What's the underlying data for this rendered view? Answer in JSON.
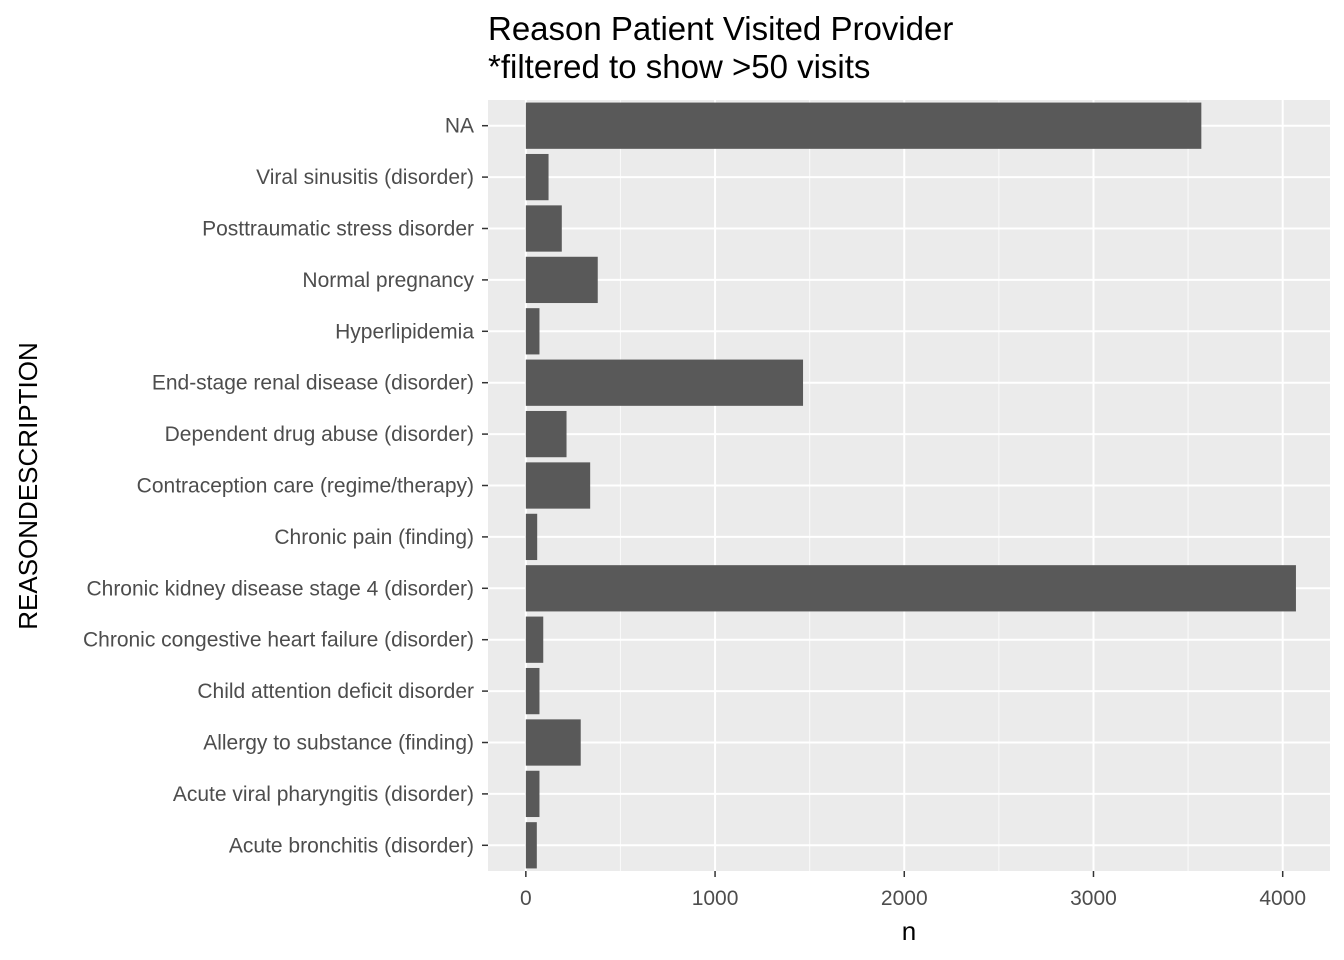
{
  "chart_data": {
    "type": "bar",
    "orientation": "horizontal",
    "title": "Reason Patient Visited Provider",
    "subtitle": "*filtered to show >50 visits",
    "xlabel": "n",
    "ylabel": "REASONDESCRIPTION",
    "xlim": [
      -200,
      4250
    ],
    "xticks": [
      0,
      1000,
      2000,
      3000,
      4000
    ],
    "grid": true,
    "bar_color": "#595959",
    "panel_color": "#ebebeb",
    "categories": [
      "NA",
      "Viral sinusitis (disorder)",
      "Posttraumatic stress disorder",
      "Normal pregnancy",
      "Hyperlipidemia",
      "End-stage renal disease (disorder)",
      "Dependent drug abuse (disorder)",
      "Contraception care (regime/therapy)",
      "Chronic pain (finding)",
      "Chronic kidney disease stage 4 (disorder)",
      "Chronic congestive heart failure (disorder)",
      "Child attention deficit disorder",
      "Allergy to substance (finding)",
      "Acute viral pharyngitis (disorder)",
      "Acute bronchitis (disorder)"
    ],
    "values": [
      3570,
      120,
      190,
      380,
      72,
      1465,
      215,
      340,
      60,
      4070,
      92,
      72,
      290,
      72,
      58
    ]
  }
}
